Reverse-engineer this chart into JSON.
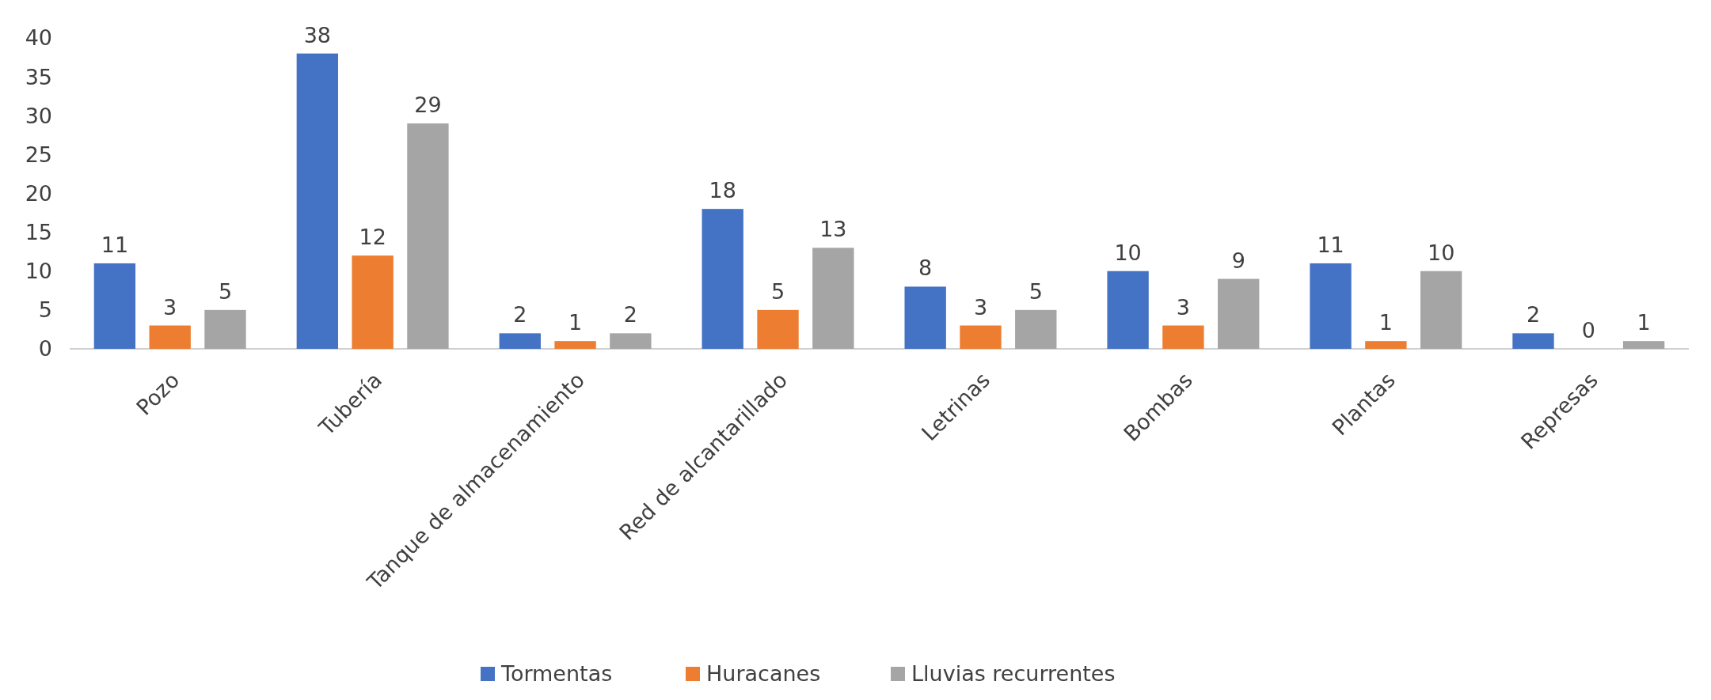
{
  "chart_data": {
    "type": "bar",
    "categories": [
      "Pozo",
      "Tubería",
      "Tanque de almacenamiento",
      "Red de alcantarillado",
      "Letrinas",
      "Bombas",
      "Plantas",
      "Represas"
    ],
    "series": [
      {
        "name": "Tormentas",
        "color": "#4472c4",
        "values": [
          11,
          38,
          2,
          18,
          8,
          10,
          11,
          2
        ]
      },
      {
        "name": "Huracanes",
        "color": "#ed7d31",
        "values": [
          3,
          12,
          1,
          5,
          3,
          3,
          1,
          0
        ]
      },
      {
        "name": "Lluvias recurrentes",
        "color": "#a5a5a5",
        "values": [
          5,
          29,
          2,
          13,
          5,
          9,
          10,
          1
        ]
      }
    ],
    "ylim": [
      0,
      40
    ],
    "yticks": [
      0,
      5,
      10,
      15,
      20,
      25,
      30,
      35,
      40
    ],
    "data_labels": true,
    "legend": "bottom",
    "grid": false
  }
}
